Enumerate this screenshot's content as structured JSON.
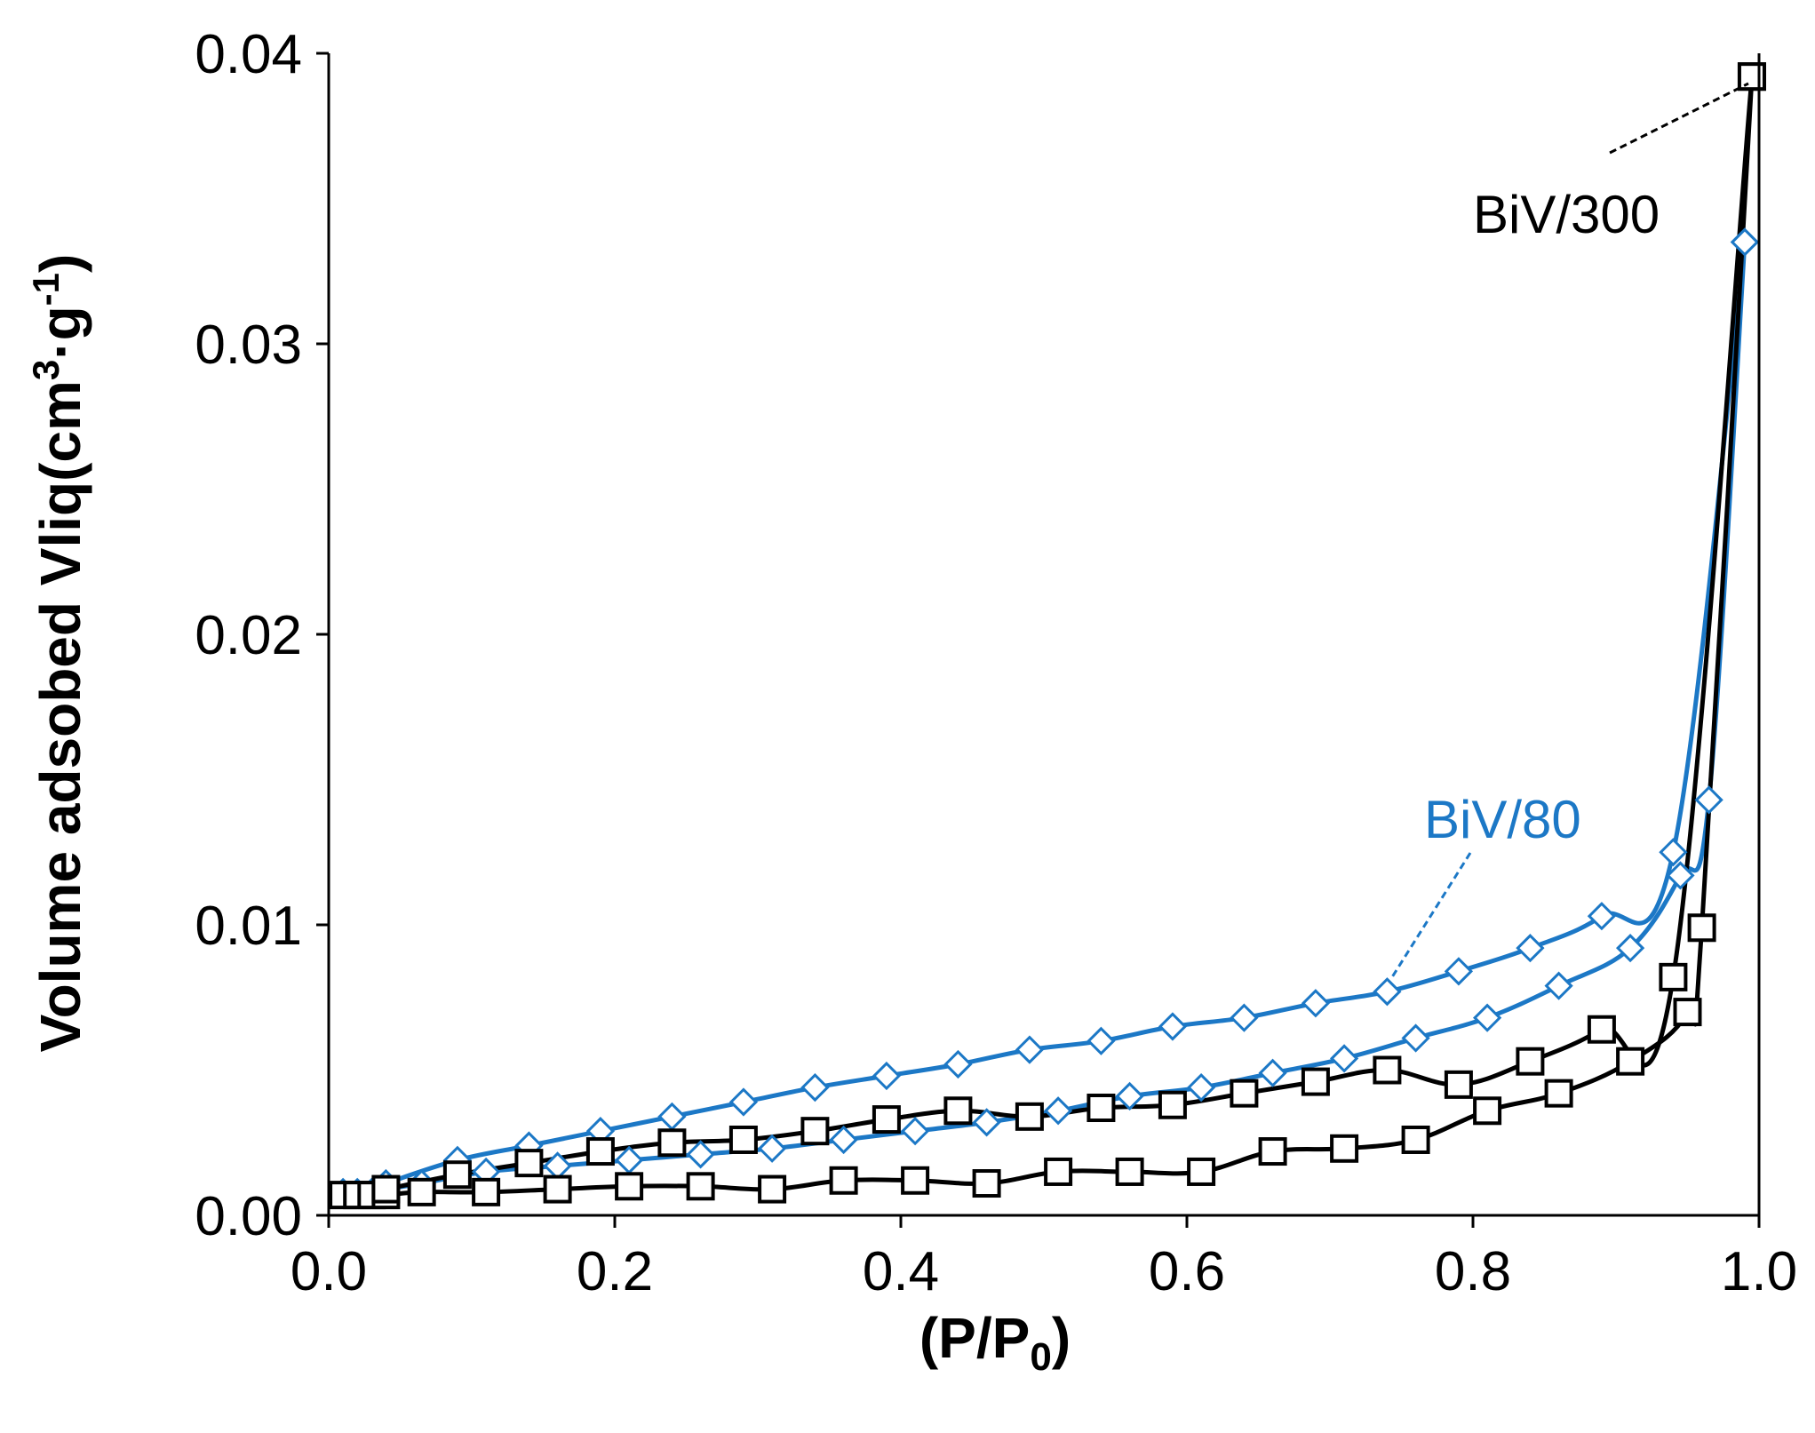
{
  "chart_data": {
    "type": "line",
    "xlabel_main": "(P/P",
    "xlabel_sub": "0",
    "xlabel_end": ")",
    "ylabel_main": "Volume adsobed Vliq(cm",
    "ylabel_sup1": "3",
    "ylabel_mid": "·g",
    "ylabel_sup2": "-1",
    "ylabel_end": ")",
    "xlim": [
      0,
      1
    ],
    "ylim": [
      0,
      0.04
    ],
    "x_ticks": [
      "0.0",
      "0.2",
      "0.4",
      "0.6",
      "0.8",
      "1.0"
    ],
    "y_ticks": [
      "0.00",
      "0.01",
      "0.02",
      "0.03",
      "0.04"
    ],
    "x_tick_values": [
      0,
      0.2,
      0.4,
      0.6,
      0.8,
      1.0
    ],
    "y_tick_values": [
      0,
      0.01,
      0.02,
      0.03,
      0.04
    ],
    "grid": false,
    "series": [
      {
        "name": "BiV/80",
        "color": "#1c78c6",
        "marker": "diamond",
        "adsorption": {
          "x": [
            0.01,
            0.02,
            0.03,
            0.04,
            0.065,
            0.11,
            0.16,
            0.21,
            0.26,
            0.31,
            0.36,
            0.41,
            0.46,
            0.51,
            0.56,
            0.61,
            0.66,
            0.71,
            0.76,
            0.81,
            0.86,
            0.91,
            0.945,
            0.965,
            0.99
          ],
          "y": [
            0.0008,
            0.0008,
            0.0008,
            0.0009,
            0.0011,
            0.0015,
            0.0017,
            0.0019,
            0.0021,
            0.0023,
            0.0026,
            0.0029,
            0.0032,
            0.0036,
            0.0041,
            0.0044,
            0.0049,
            0.0054,
            0.0061,
            0.0068,
            0.0079,
            0.0092,
            0.0117,
            0.0143,
            0.0335
          ]
        },
        "desorption": {
          "x": [
            0.99,
            0.94,
            0.89,
            0.84,
            0.79,
            0.74,
            0.69,
            0.64,
            0.59,
            0.54,
            0.49,
            0.44,
            0.39,
            0.34,
            0.29,
            0.24,
            0.19,
            0.14,
            0.09,
            0.04
          ],
          "y": [
            0.0335,
            0.0125,
            0.0103,
            0.0092,
            0.0084,
            0.0077,
            0.0073,
            0.0068,
            0.0065,
            0.006,
            0.0057,
            0.0052,
            0.0048,
            0.0044,
            0.0039,
            0.0034,
            0.0029,
            0.0024,
            0.0019,
            0.0011
          ]
        }
      },
      {
        "name": "BiV/300",
        "color": "#000000",
        "marker": "square",
        "adsorption": {
          "x": [
            0.01,
            0.02,
            0.03,
            0.04,
            0.065,
            0.11,
            0.16,
            0.21,
            0.26,
            0.31,
            0.36,
            0.41,
            0.46,
            0.51,
            0.56,
            0.61,
            0.66,
            0.71,
            0.76,
            0.81,
            0.86,
            0.91,
            0.95,
            0.96,
            0.995
          ],
          "y": [
            0.0007,
            0.0007,
            0.0007,
            0.0007,
            0.0008,
            0.0008,
            0.0009,
            0.001,
            0.001,
            0.0009,
            0.0012,
            0.0012,
            0.0011,
            0.0015,
            0.0015,
            0.0015,
            0.0022,
            0.0023,
            0.0026,
            0.0036,
            0.0042,
            0.0053,
            0.007,
            0.0099,
            0.0392
          ]
        },
        "desorption": {
          "x": [
            0.995,
            0.94,
            0.89,
            0.84,
            0.79,
            0.74,
            0.69,
            0.64,
            0.59,
            0.54,
            0.49,
            0.44,
            0.39,
            0.34,
            0.29,
            0.24,
            0.19,
            0.14,
            0.09,
            0.04
          ],
          "y": [
            0.0392,
            0.0082,
            0.0064,
            0.0053,
            0.0045,
            0.005,
            0.0046,
            0.0042,
            0.0038,
            0.0037,
            0.0034,
            0.0036,
            0.0033,
            0.0029,
            0.0026,
            0.0025,
            0.0022,
            0.0018,
            0.0014,
            0.0009
          ]
        }
      }
    ],
    "annotations": [
      {
        "text": "BiV/300",
        "color": "#000000"
      },
      {
        "text": "BiV/80",
        "color": "#1c78c6"
      }
    ]
  }
}
